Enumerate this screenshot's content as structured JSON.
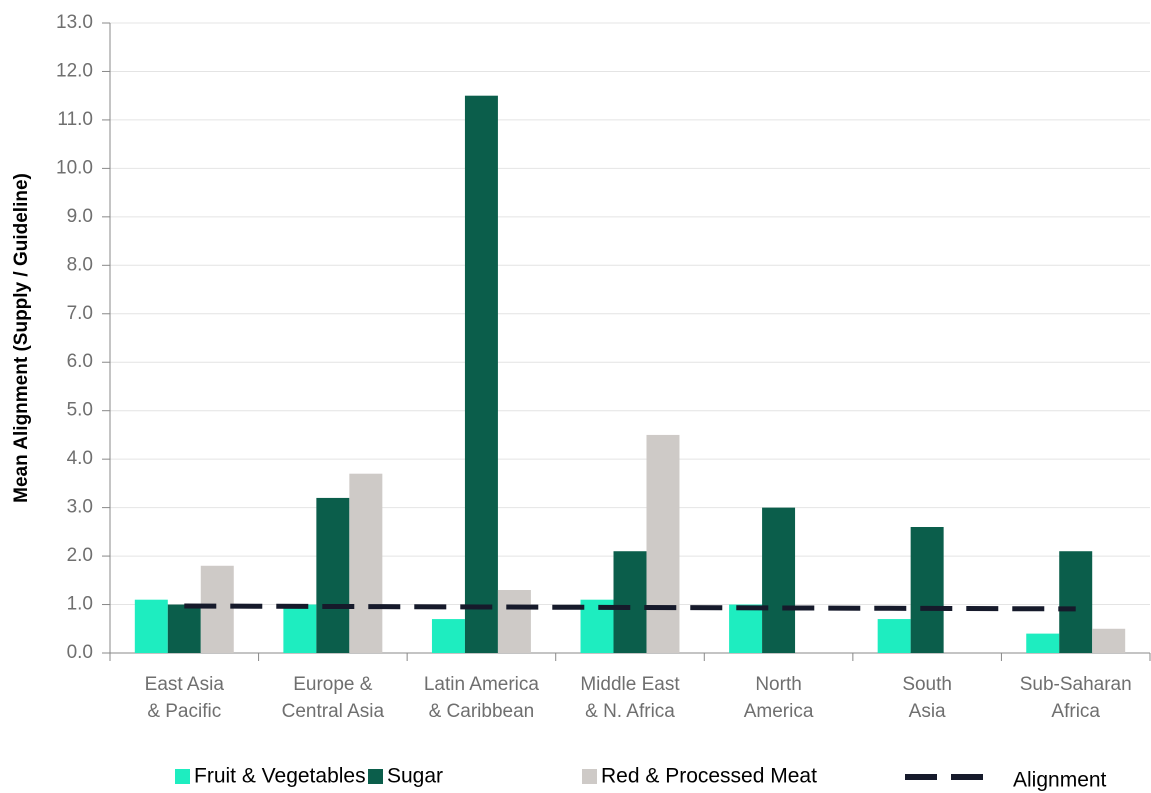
{
  "chart_data": {
    "type": "bar",
    "y_label": "Mean Alignment (Supply / Guideline)",
    "categories": [
      [
        "East Asia",
        "& Pacific"
      ],
      [
        "Europe &",
        "Central Asia"
      ],
      [
        "Latin America",
        "& Caribbean"
      ],
      [
        "Middle East",
        "& N. Africa"
      ],
      [
        "North",
        "America"
      ],
      [
        "South",
        "Asia"
      ],
      [
        "Sub-Saharan",
        "Africa"
      ]
    ],
    "series": [
      {
        "name": "Fruit & Vegetables",
        "color": "#1eedc0",
        "values": [
          1.1,
          1.0,
          0.7,
          1.1,
          1.0,
          0.7,
          0.4
        ]
      },
      {
        "name": "Sugar",
        "color": "#0b5e4b",
        "values": [
          1.0,
          3.2,
          11.5,
          2.1,
          3.0,
          2.6,
          2.1
        ]
      },
      {
        "name": "Red & Processed Meat",
        "color": "#cecac7",
        "values": [
          1.8,
          3.7,
          1.3,
          4.5,
          null,
          null,
          0.5
        ]
      },
      {
        "name": "Alignment",
        "type": "line",
        "dashed": true,
        "color": "#161a2b",
        "values": [
          0.97,
          0.96,
          0.95,
          0.94,
          0.93,
          0.92,
          0.91
        ]
      }
    ],
    "ylim": [
      0,
      13
    ],
    "yticks": [
      {
        "value": 0,
        "label": "0.0"
      },
      {
        "value": 1,
        "label": "1.0"
      },
      {
        "value": 2,
        "label": "2.0"
      },
      {
        "value": 3,
        "label": "3.0"
      },
      {
        "value": 4,
        "label": "4.0"
      },
      {
        "value": 5,
        "label": "5.0"
      },
      {
        "value": 6,
        "label": "6.0"
      },
      {
        "value": 7,
        "label": "7.0"
      },
      {
        "value": 8,
        "label": "8.0"
      },
      {
        "value": 9,
        "label": "9.0"
      },
      {
        "value": 10,
        "label": "10.0"
      },
      {
        "value": 11,
        "label": "11.0"
      },
      {
        "value": 12,
        "label": "12.0"
      },
      {
        "value": 13,
        "label": "13.0"
      }
    ],
    "grid": true,
    "legend": "bottom"
  }
}
